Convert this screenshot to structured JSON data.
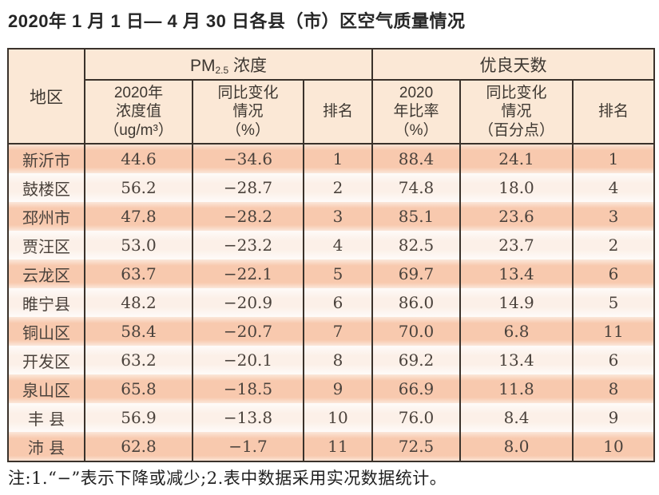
{
  "title": "2020年 1 月 1 日— 4 月 30 日各县（市）区空气质量情况",
  "colors": {
    "border": "#3a322b",
    "header_bg": "#fbe8d6",
    "row_odd_bg": "#f8c9ae",
    "row_even_bg": "#fcf0e8",
    "text": "#4a423c"
  },
  "table": {
    "header": {
      "region": "地区",
      "pm25_prefix": "PM",
      "pm25_sub": "2.5",
      "pm25_suffix": " 浓度",
      "good_days": "优良天数",
      "sub": {
        "pm_value": "2020年\n浓度值\n（ug/m³）",
        "pm_change": "同比变化\n情况\n（%）",
        "pm_rank": "排名",
        "gd_ratio": "2020\n年比率\n（%）",
        "gd_change": "同比变化\n情况\n（百分点）",
        "gd_rank": "排名"
      }
    },
    "columns_order": [
      "region",
      "pm_value",
      "pm_change",
      "pm_rank",
      "gd_ratio",
      "gd_change",
      "gd_rank"
    ],
    "rows": [
      {
        "region": "新沂市",
        "pm_value": "44.6",
        "pm_change": "−34.6",
        "pm_rank": "1",
        "gd_ratio": "88.4",
        "gd_change": "24.1",
        "gd_rank": "1"
      },
      {
        "region": "鼓楼区",
        "pm_value": "56.2",
        "pm_change": "−28.7",
        "pm_rank": "2",
        "gd_ratio": "74.8",
        "gd_change": "18.0",
        "gd_rank": "4"
      },
      {
        "region": "邳州市",
        "pm_value": "47.8",
        "pm_change": "−28.2",
        "pm_rank": "3",
        "gd_ratio": "85.1",
        "gd_change": "23.6",
        "gd_rank": "3"
      },
      {
        "region": "贾汪区",
        "pm_value": "53.0",
        "pm_change": "−23.2",
        "pm_rank": "4",
        "gd_ratio": "82.5",
        "gd_change": "23.7",
        "gd_rank": "2"
      },
      {
        "region": "云龙区",
        "pm_value": "63.7",
        "pm_change": "−22.1",
        "pm_rank": "5",
        "gd_ratio": "69.7",
        "gd_change": "13.4",
        "gd_rank": "6"
      },
      {
        "region": "睢宁县",
        "pm_value": "48.2",
        "pm_change": "−20.9",
        "pm_rank": "6",
        "gd_ratio": "86.0",
        "gd_change": "14.9",
        "gd_rank": "5"
      },
      {
        "region": "铜山区",
        "pm_value": "58.4",
        "pm_change": "−20.7",
        "pm_rank": "7",
        "gd_ratio": "70.0",
        "gd_change": "6.8",
        "gd_rank": "11"
      },
      {
        "region": "开发区",
        "pm_value": "63.2",
        "pm_change": "−20.1",
        "pm_rank": "8",
        "gd_ratio": "69.2",
        "gd_change": "13.4",
        "gd_rank": "6"
      },
      {
        "region": "泉山区",
        "pm_value": "65.8",
        "pm_change": "−18.5",
        "pm_rank": "9",
        "gd_ratio": "66.9",
        "gd_change": "11.8",
        "gd_rank": "8"
      },
      {
        "region": "丰 县",
        "pm_value": "56.9",
        "pm_change": "−13.8",
        "pm_rank": "10",
        "gd_ratio": "76.0",
        "gd_change": "8.4",
        "gd_rank": "9"
      },
      {
        "region": "沛 县",
        "pm_value": "62.8",
        "pm_change": "−1.7",
        "pm_rank": "11",
        "gd_ratio": "72.5",
        "gd_change": "8.0",
        "gd_rank": "10"
      }
    ]
  },
  "note": "注:1.“−”表示下降或减少;2.表中数据采用实况数据统计。"
}
